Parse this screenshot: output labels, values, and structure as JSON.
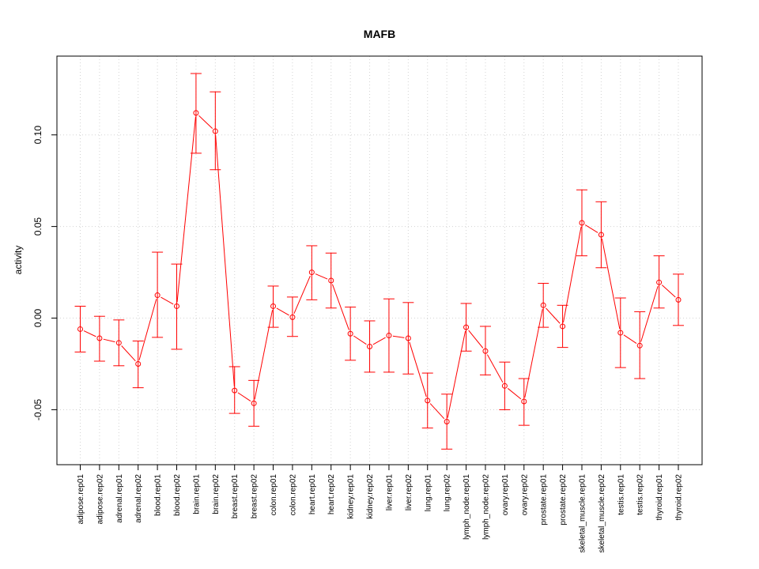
{
  "chart_data": {
    "type": "line",
    "title": "MAFB",
    "xlabel": "",
    "ylabel": "activity",
    "ylim": [
      -0.08,
      0.143
    ],
    "yticks": [
      -0.05,
      0.0,
      0.05,
      0.1
    ],
    "ytick_labels": [
      "-0.05",
      "0.00",
      "0.05",
      "0.10"
    ],
    "grid": true,
    "color": "#ff0000",
    "categories": [
      "adipose.rep01",
      "adipose.rep02",
      "adrenal.rep01",
      "adrenal.rep02",
      "blood.rep01",
      "blood.rep02",
      "brain.rep01",
      "brain.rep02",
      "breast.rep01",
      "breast.rep02",
      "colon.rep01",
      "colon.rep02",
      "heart.rep01",
      "heart.rep02",
      "kidney.rep01",
      "kidney.rep02",
      "liver.rep01",
      "liver.rep02",
      "lung.rep01",
      "lung.rep02",
      "lymph_node.rep01",
      "lymph_node.rep02",
      "ovary.rep01",
      "ovary.rep02",
      "prostate.rep01",
      "prostate.rep02",
      "skeletal_muscle.rep01",
      "skeletal_muscle.rep02",
      "testis.rep01",
      "testis.rep02",
      "thyroid.rep01",
      "thyroid.rep02"
    ],
    "values": [
      -0.006,
      -0.011,
      -0.0135,
      -0.025,
      0.0125,
      0.0065,
      0.112,
      0.102,
      -0.0395,
      -0.0465,
      0.0065,
      0.0005,
      0.025,
      0.0205,
      -0.0085,
      -0.0155,
      -0.0095,
      -0.011,
      -0.045,
      -0.0565,
      -0.005,
      -0.018,
      -0.037,
      -0.0455,
      0.007,
      -0.0045,
      0.052,
      0.0455,
      -0.008,
      -0.015,
      0.0195,
      0.01
    ],
    "err_low": [
      -0.0185,
      -0.0235,
      -0.026,
      -0.038,
      -0.0105,
      -0.017,
      0.09,
      0.081,
      -0.052,
      -0.059,
      -0.005,
      -0.01,
      0.01,
      0.0055,
      -0.023,
      -0.0295,
      -0.0295,
      -0.0305,
      -0.06,
      -0.0715,
      -0.018,
      -0.031,
      -0.05,
      -0.0585,
      -0.005,
      -0.016,
      0.034,
      0.0275,
      -0.027,
      -0.033,
      0.0055,
      -0.004
    ],
    "err_high": [
      0.0065,
      0.001,
      -0.001,
      -0.0125,
      0.036,
      0.0295,
      0.1335,
      0.1235,
      -0.0265,
      -0.034,
      0.0175,
      0.0115,
      0.0395,
      0.0355,
      0.006,
      -0.0015,
      0.0105,
      0.0085,
      -0.03,
      -0.0415,
      0.008,
      -0.0045,
      -0.024,
      -0.033,
      0.019,
      0.007,
      0.07,
      0.0635,
      0.011,
      0.0035,
      0.034,
      0.024
    ]
  }
}
